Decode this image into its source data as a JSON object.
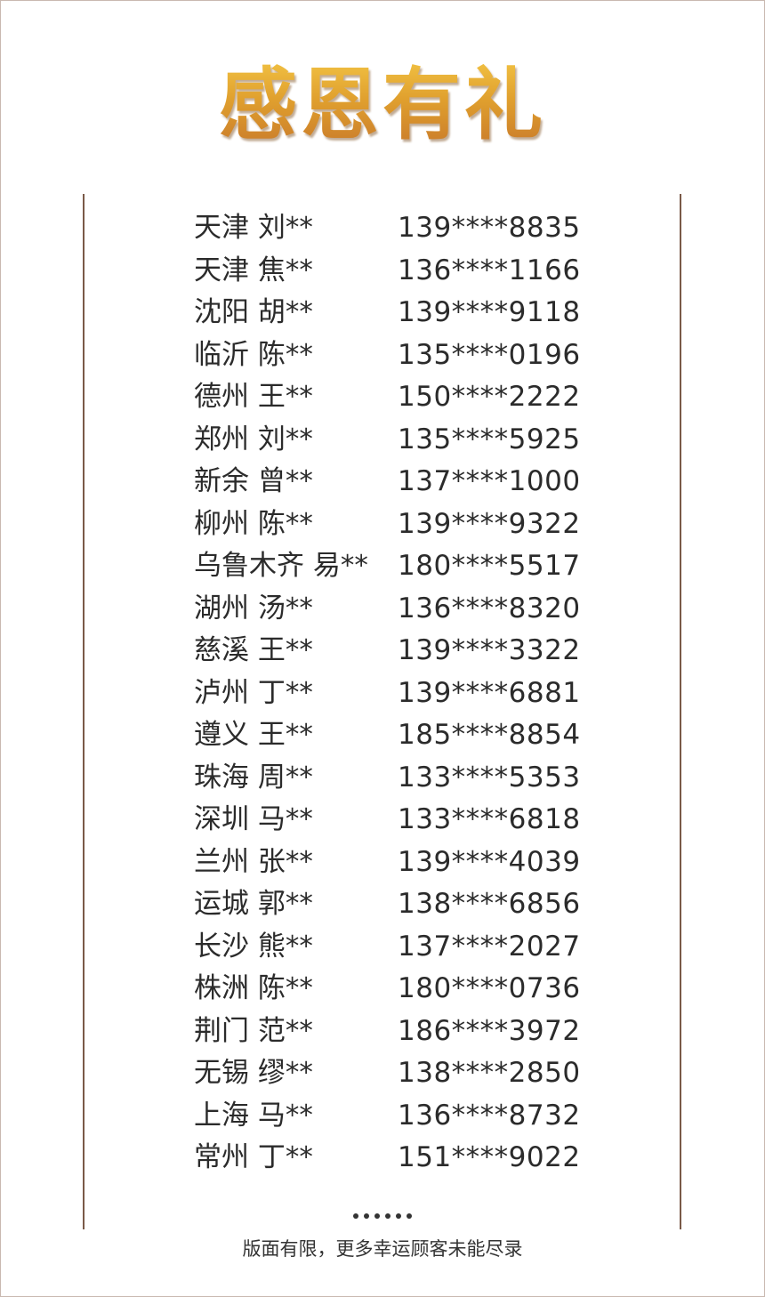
{
  "title": "感恩有礼",
  "winners": [
    {
      "name": "天津 刘**",
      "phone": "139****8835"
    },
    {
      "name": "天津 焦**",
      "phone": "136****1166"
    },
    {
      "name": "沈阳 胡**",
      "phone": "139****9118"
    },
    {
      "name": "临沂 陈**",
      "phone": "135****0196"
    },
    {
      "name": "德州 王**",
      "phone": "150****2222"
    },
    {
      "name": "郑州 刘**",
      "phone": "135****5925"
    },
    {
      "name": "新余 曾**",
      "phone": "137****1000"
    },
    {
      "name": "柳州 陈**",
      "phone": "139****9322"
    },
    {
      "name": "乌鲁木齐 易**",
      "phone": "180****5517"
    },
    {
      "name": "湖州 汤**",
      "phone": "136****8320"
    },
    {
      "name": "慈溪 王**",
      "phone": "139****3322"
    },
    {
      "name": "泸州 丁**",
      "phone": "139****6881"
    },
    {
      "name": "遵义 王**",
      "phone": "185****8854"
    },
    {
      "name": "珠海 周**",
      "phone": "133****5353"
    },
    {
      "name": "深圳 马**",
      "phone": "133****6818"
    },
    {
      "name": "兰州 张**",
      "phone": "139****4039"
    },
    {
      "name": "运城 郭**",
      "phone": "138****6856"
    },
    {
      "name": "长沙 熊**",
      "phone": "137****2027"
    },
    {
      "name": "株洲 陈**",
      "phone": "180****0736"
    },
    {
      "name": "荆门 范**",
      "phone": "186****3972"
    },
    {
      "name": "无锡 缪**",
      "phone": "138****2850"
    },
    {
      "name": "上海 马**",
      "phone": "136****8732"
    },
    {
      "name": "常州 丁**",
      "phone": "151****9022"
    }
  ],
  "footer_note": "版面有限，更多幸运顾客未能尽录",
  "colors": {
    "title_gold": "#e0a02e",
    "divider": "#7a5a48"
  }
}
